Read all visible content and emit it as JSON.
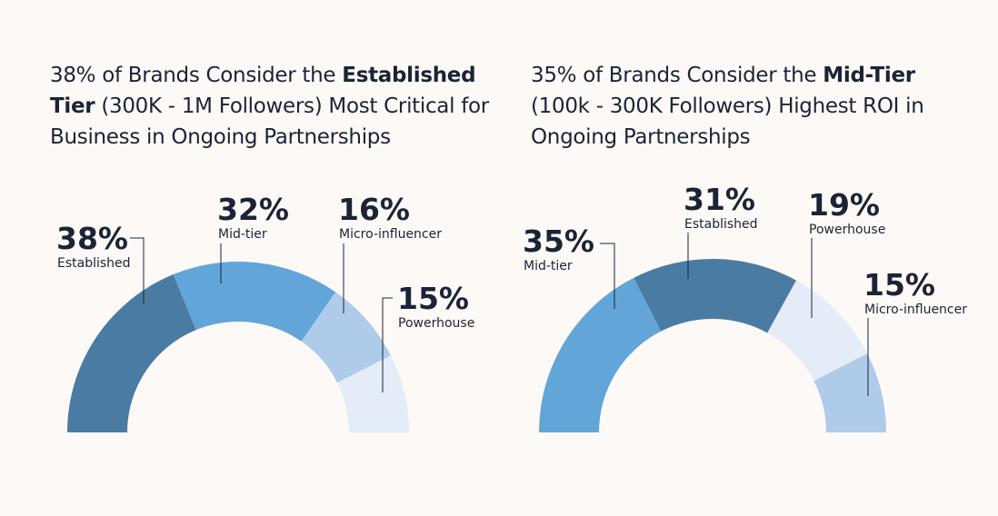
{
  "chart_data": [
    {
      "type": "semi-donut",
      "title": [
        {
          "text": "38% of Brands Consider the "
        },
        {
          "text": "Established Tier",
          "bold": true
        },
        {
          "text": " (300K - 1M Followers) Most Critical for Business in Ongoing Partnerships"
        }
      ],
      "categories": [
        "Established",
        "Mid-tier",
        "Micro-influencer",
        "Powerhouse"
      ],
      "values": [
        38,
        32,
        16,
        15
      ],
      "value_labels": [
        "38%",
        "32%",
        "16%",
        "15%"
      ],
      "colors": [
        "#4a7ba3",
        "#62a5d9",
        "#aecbe9",
        "#e3ecf7"
      ]
    },
    {
      "type": "semi-donut",
      "title": [
        {
          "text": "35% of Brands Consider the "
        },
        {
          "text": "Mid-Tier",
          "bold": true
        },
        {
          "text": " (100k - 300K Followers) Highest ROI in Ongoing Partnerships"
        }
      ],
      "categories": [
        "Mid-tier",
        "Established",
        "Powerhouse",
        "Micro-influencer"
      ],
      "values": [
        35,
        31,
        19,
        15
      ],
      "value_labels": [
        "35%",
        "31%",
        "19%",
        "15%"
      ],
      "colors": [
        "#62a5d9",
        "#4a7ba3",
        "#e3ecf7",
        "#aecbe9"
      ]
    }
  ]
}
